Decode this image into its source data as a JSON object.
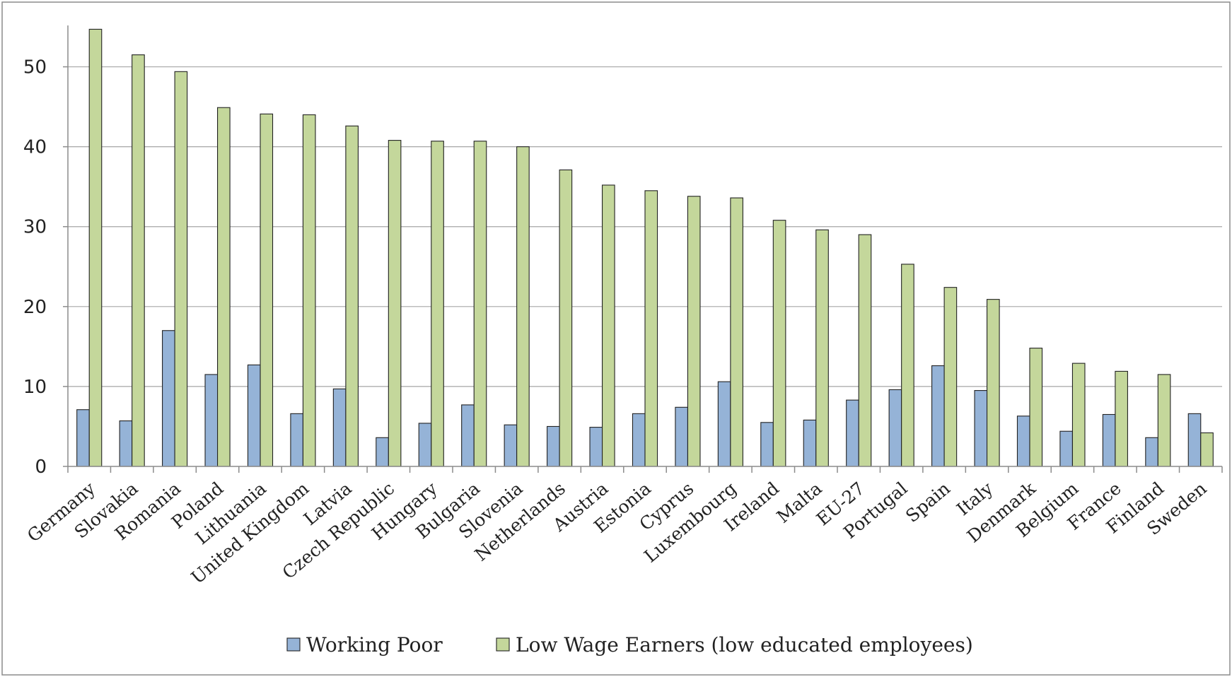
{
  "chart_data": {
    "type": "bar",
    "title": "",
    "xlabel": "",
    "ylabel": "",
    "ylim": [
      0,
      55
    ],
    "y_ticks": [
      0,
      10,
      20,
      30,
      40,
      50
    ],
    "grid": true,
    "legend_position": "bottom",
    "categories": [
      "Germany",
      "Slovakia",
      "Romania",
      "Poland",
      "Lithuania",
      "United Kingdom",
      "Latvia",
      "Czech Republic",
      "Hungary",
      "Bulgaria",
      "Slovenia",
      "Netherlands",
      "Austria",
      "Estonia",
      "Cyprus",
      "Luxembourg",
      "Ireland",
      "Malta",
      "EU-27",
      "Portugal",
      "Spain",
      "Italy",
      "Denmark",
      "Belgium",
      "France",
      "Finland",
      "Sweden"
    ],
    "series": [
      {
        "name": "Working Poor",
        "color": "#95b3d7",
        "values": [
          7.1,
          5.7,
          17.0,
          11.5,
          12.7,
          6.6,
          9.7,
          3.6,
          5.4,
          7.7,
          5.2,
          5.0,
          4.9,
          6.6,
          7.4,
          10.6,
          5.5,
          5.8,
          8.3,
          9.6,
          12.6,
          9.5,
          6.3,
          4.4,
          6.5,
          3.6,
          6.6
        ]
      },
      {
        "name": "Low Wage Earners (low educated employees)",
        "color": "#c4d79b",
        "values": [
          54.7,
          51.5,
          49.4,
          44.9,
          44.1,
          44.0,
          42.6,
          40.8,
          40.7,
          40.7,
          40.0,
          37.1,
          35.2,
          34.5,
          33.8,
          33.6,
          30.8,
          29.6,
          29.0,
          25.3,
          22.4,
          20.9,
          14.8,
          12.9,
          11.9,
          11.5,
          4.2
        ]
      }
    ]
  }
}
